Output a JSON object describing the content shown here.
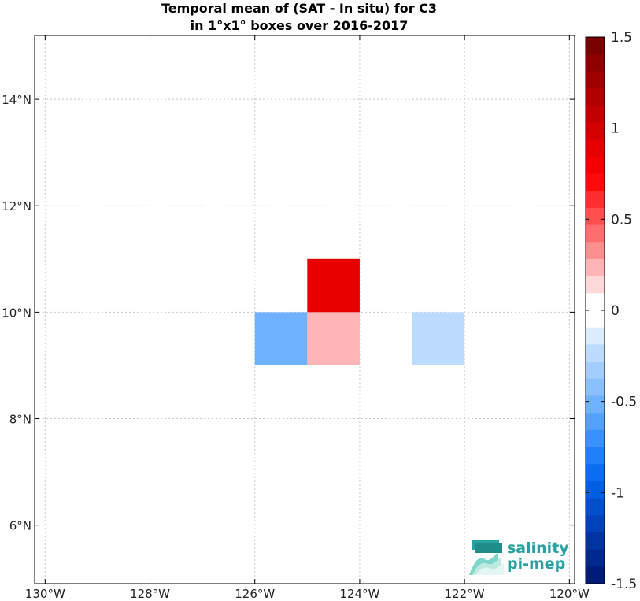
{
  "title": {
    "line1": "Temporal mean of (SAT - In situ) for C3",
    "line2": "in 1°x1° boxes over 2016-2017"
  },
  "logo": {
    "line1": "salinity",
    "line2": "pi-mep"
  },
  "colors": {
    "positive_strong": "#e60000",
    "positive_light": "#ffb5b5",
    "negative_medium": "#6eb1fe",
    "negative_light": "#bcdbff",
    "logo": "#27a2a0"
  },
  "chart_data": {
    "type": "heatmap",
    "title": "Temporal mean of (SAT - In situ) for C3 in 1°x1° boxes over 2016-2017",
    "xlim": [
      -130.2,
      -119.9
    ],
    "ylim": [
      4.9,
      15.2
    ],
    "x_ticks": [
      {
        "value": -130,
        "label": "130°W"
      },
      {
        "value": -128,
        "label": "128°W"
      },
      {
        "value": -126,
        "label": "126°W"
      },
      {
        "value": -124,
        "label": "124°W"
      },
      {
        "value": -122,
        "label": "122°W"
      },
      {
        "value": -120,
        "label": "120°W"
      }
    ],
    "y_ticks": [
      {
        "value": 6,
        "label": "6°N"
      },
      {
        "value": 8,
        "label": "8°N"
      },
      {
        "value": 10,
        "label": "10°N"
      },
      {
        "value": 12,
        "label": "12°N"
      },
      {
        "value": 14,
        "label": "14°N"
      }
    ],
    "grid": true,
    "cells": [
      {
        "lon_min": -125,
        "lon_max": -124,
        "lat_min": 10,
        "lat_max": 11,
        "value": 0.9
      },
      {
        "lon_min": -126,
        "lon_max": -125,
        "lat_min": 9,
        "lat_max": 10,
        "value": -0.5
      },
      {
        "lon_min": -125,
        "lon_max": -124,
        "lat_min": 9,
        "lat_max": 10,
        "value": 0.25
      },
      {
        "lon_min": -123,
        "lon_max": -122,
        "lat_min": 9,
        "lat_max": 10,
        "value": -0.25
      }
    ],
    "colorbar": {
      "range": [
        -1.5,
        1.5
      ],
      "ticks": [
        {
          "value": 1.5,
          "label": "1.5"
        },
        {
          "value": 1,
          "label": "1"
        },
        {
          "value": 0.5,
          "label": "0.5"
        },
        {
          "value": 0,
          "label": "0"
        },
        {
          "value": -0.5,
          "label": "-0.5"
        },
        {
          "value": -1,
          "label": "-1"
        },
        {
          "value": -1.5,
          "label": "-1.5"
        }
      ],
      "colors_top_to_bottom": [
        "#7a0000",
        "#8c0000",
        "#9e0000",
        "#b00000",
        "#c20000",
        "#d40000",
        "#e60000",
        "#f50000",
        "#ff0a0a",
        "#ff2e2e",
        "#ff4f4f",
        "#ff6e6e",
        "#ff8f8f",
        "#ffb5b5",
        "#ffd9d9",
        "#ffffff",
        "#ffffff",
        "#dbecff",
        "#bcdbff",
        "#a3cdff",
        "#8ac0ff",
        "#6eb1fe",
        "#52a2fd",
        "#3892fb",
        "#1f80f7",
        "#0a6ef0",
        "#005fe0",
        "#0050cc",
        "#0042b8",
        "#0034a3",
        "#00288f",
        "#001c7a"
      ]
    }
  }
}
